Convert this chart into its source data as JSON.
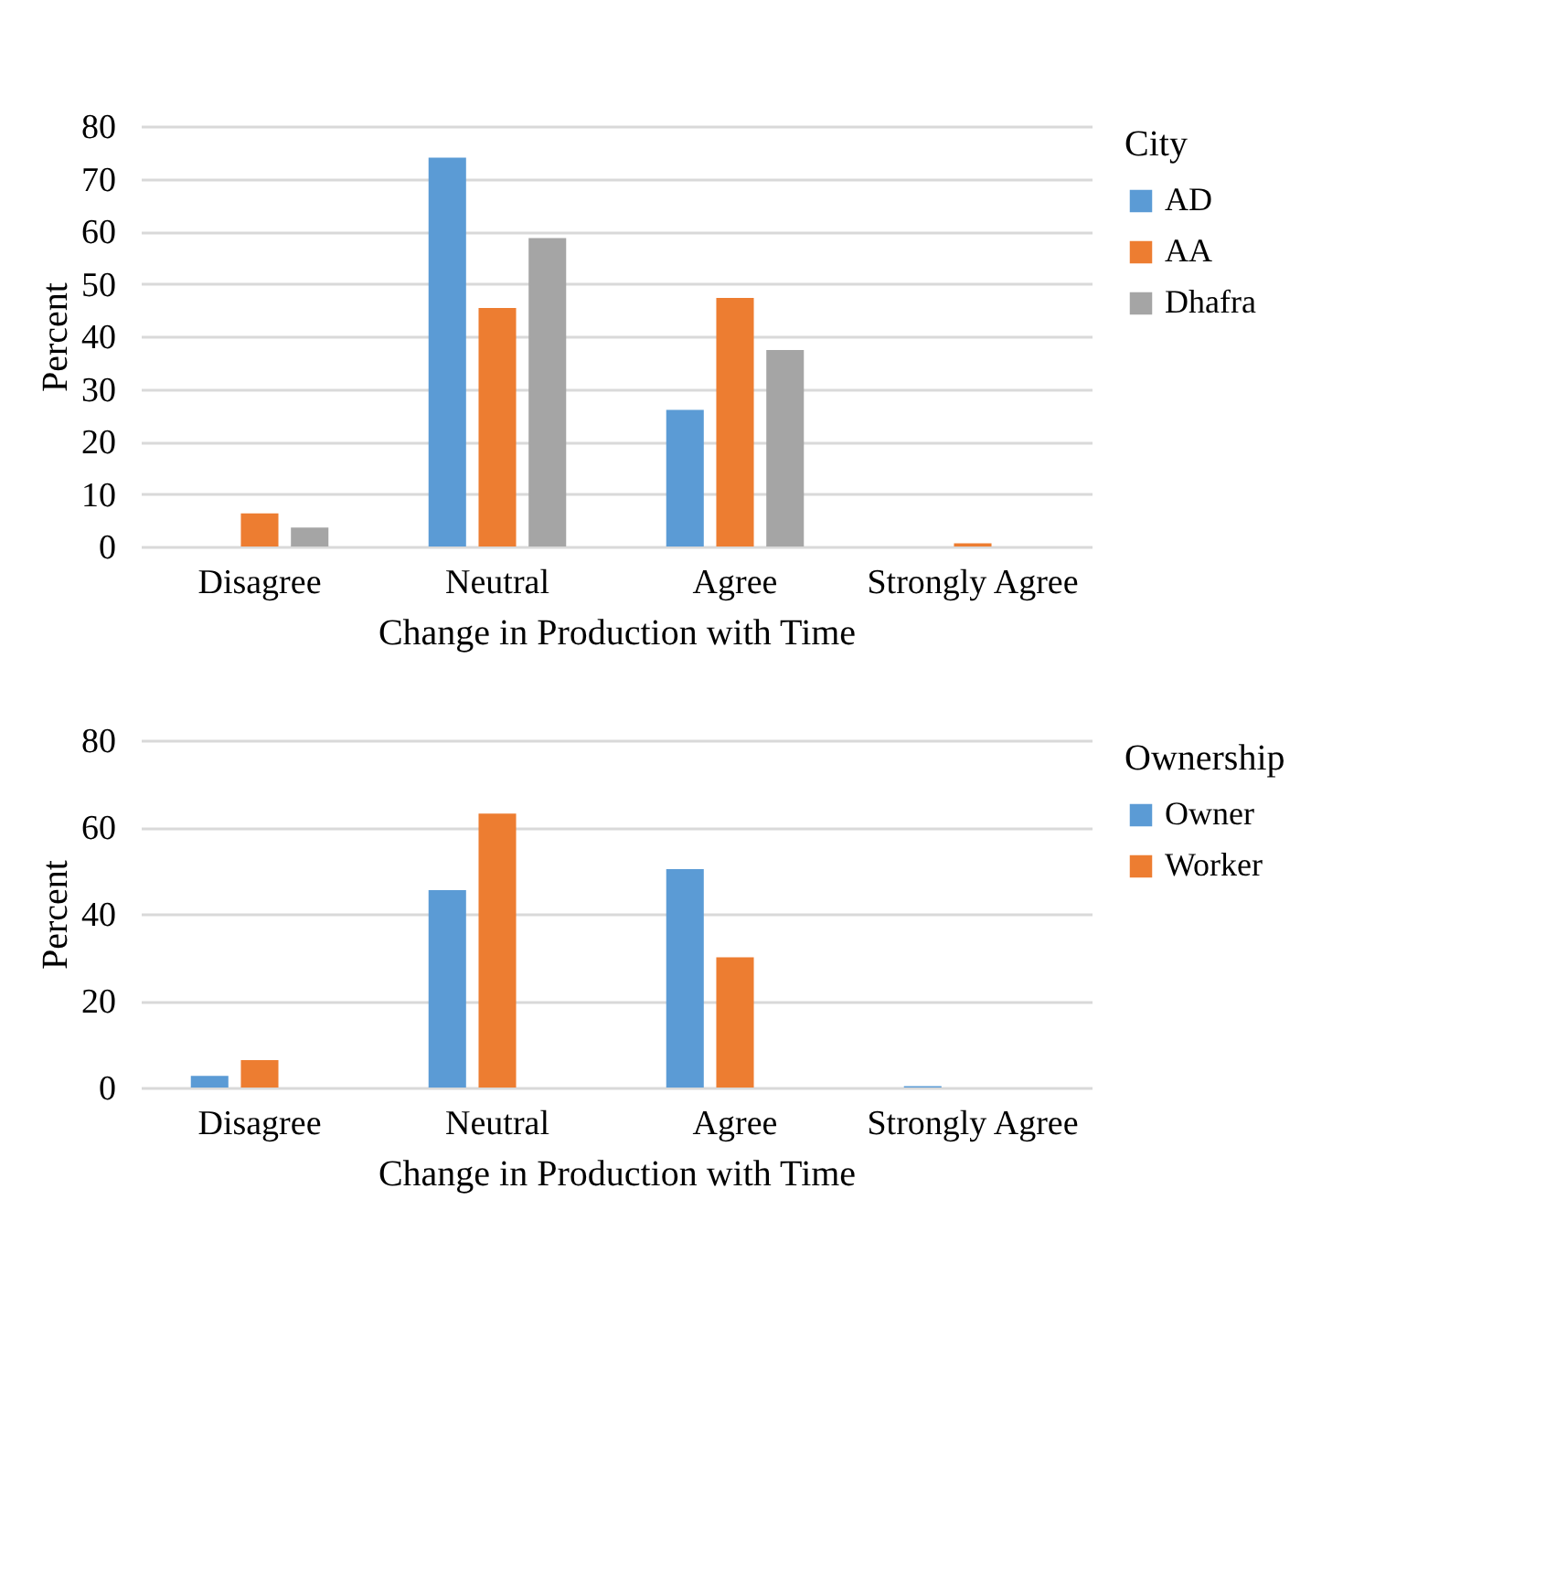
{
  "chart_data": [
    {
      "type": "bar",
      "xlabel": "Change in Production with Time",
      "ylabel": "Percent",
      "legend_title": "City",
      "categories": [
        "Disagree",
        "Neutral",
        "Agree",
        "Strongly Agree"
      ],
      "ylim": [
        0,
        80
      ],
      "yticks": [
        0,
        10,
        20,
        30,
        40,
        50,
        60,
        70,
        80
      ],
      "grid": "y",
      "legend": "right",
      "series": [
        {
          "name": "AD",
          "color": "#5b9bd5",
          "values": [
            0,
            74,
            26,
            0
          ]
        },
        {
          "name": "AA",
          "color": "#ed7d31",
          "values": [
            6.3,
            45.4,
            47.3,
            0.6
          ]
        },
        {
          "name": "Dhafra",
          "color": "#a5a5a5",
          "values": [
            3.6,
            58.7,
            37.4,
            0
          ]
        }
      ]
    },
    {
      "type": "bar",
      "xlabel": "Change in Production with Time",
      "ylabel": "Percent",
      "legend_title": "Ownership",
      "categories": [
        "Disagree",
        "Neutral",
        "Agree",
        "Strongly Agree"
      ],
      "ylim": [
        0,
        80
      ],
      "yticks": [
        0,
        20,
        40,
        60,
        80
      ],
      "grid": "y",
      "legend": "right",
      "series": [
        {
          "name": "Owner",
          "color": "#5b9bd5",
          "values": [
            2.7,
            45.5,
            50.3,
            0.3
          ]
        },
        {
          "name": "Worker",
          "color": "#ed7d31",
          "values": [
            6.3,
            63.1,
            30.0,
            0
          ]
        }
      ]
    }
  ]
}
